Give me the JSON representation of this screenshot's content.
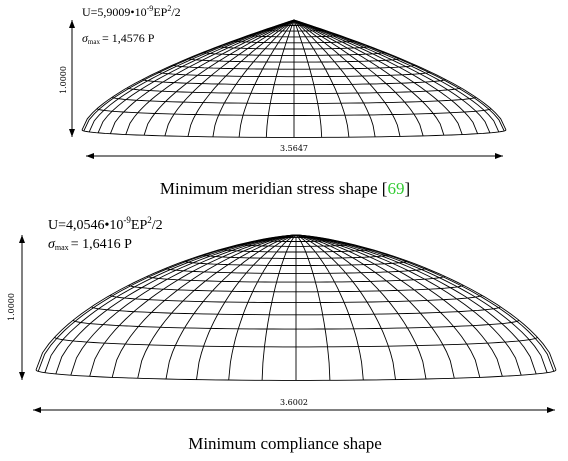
{
  "panels": [
    {
      "energy": {
        "prefix": "U=5,9009•10",
        "exponent": "-9",
        "unit": "EP",
        "power": "2",
        "suffix": "/2"
      },
      "stress": {
        "symbol": "σ",
        "subscript": "max",
        "value": "= 1,4576 P"
      },
      "height": "1.0000",
      "width": "3.5647",
      "caption": {
        "before": "Minimum meridian stress shape [",
        "ref": "69",
        "after": "]"
      }
    },
    {
      "energy": {
        "prefix": "U=4,0546•10",
        "exponent": "-9",
        "unit": "EP",
        "power": "2",
        "suffix": "/2"
      },
      "stress": {
        "symbol": "σ",
        "subscript": "max",
        "value": "= 1,6416 P"
      },
      "height": "1.0000",
      "width": "3.6002",
      "caption": {
        "before": "Minimum compliance shape",
        "ref": "",
        "after": ""
      }
    }
  ]
}
